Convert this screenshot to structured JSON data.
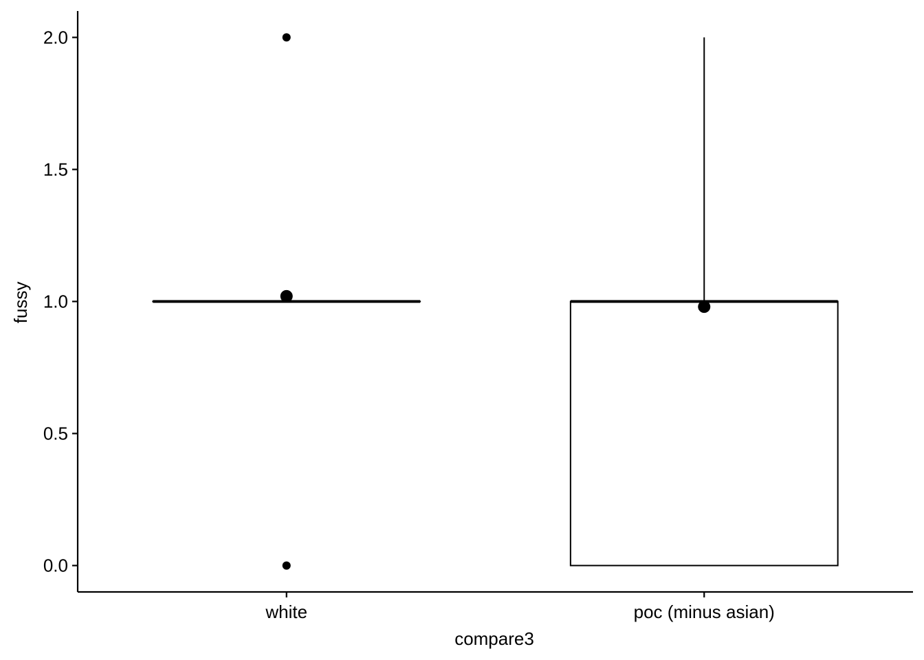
{
  "chart_data": {
    "type": "boxplot",
    "title": "",
    "xlabel": "compare3",
    "ylabel": "fussy",
    "ylim": [
      -0.1,
      2.1
    ],
    "yticks": [
      0.0,
      0.5,
      1.0,
      1.5,
      2.0
    ],
    "ytick_labels": [
      "0.0",
      "0.5",
      "1.0",
      "1.5",
      "2.0"
    ],
    "grid": false,
    "legend": "none",
    "categories": [
      "white",
      "poc (minus asian)"
    ],
    "boxes": [
      {
        "category": "white",
        "q1": 1.0,
        "median": 1.0,
        "q3": 1.0,
        "whisker_low": 1.0,
        "whisker_high": 1.0,
        "outliers": [
          2.0,
          0.0
        ],
        "mean": 1.02
      },
      {
        "category": "poc (minus asian)",
        "q1": 0.0,
        "median": 1.0,
        "q3": 1.0,
        "whisker_low": 0.0,
        "whisker_high": 2.0,
        "outliers": [],
        "mean": 0.98
      }
    ],
    "colors": {
      "line": "#000000",
      "fill": "#ffffff",
      "background": "#ffffff"
    }
  }
}
